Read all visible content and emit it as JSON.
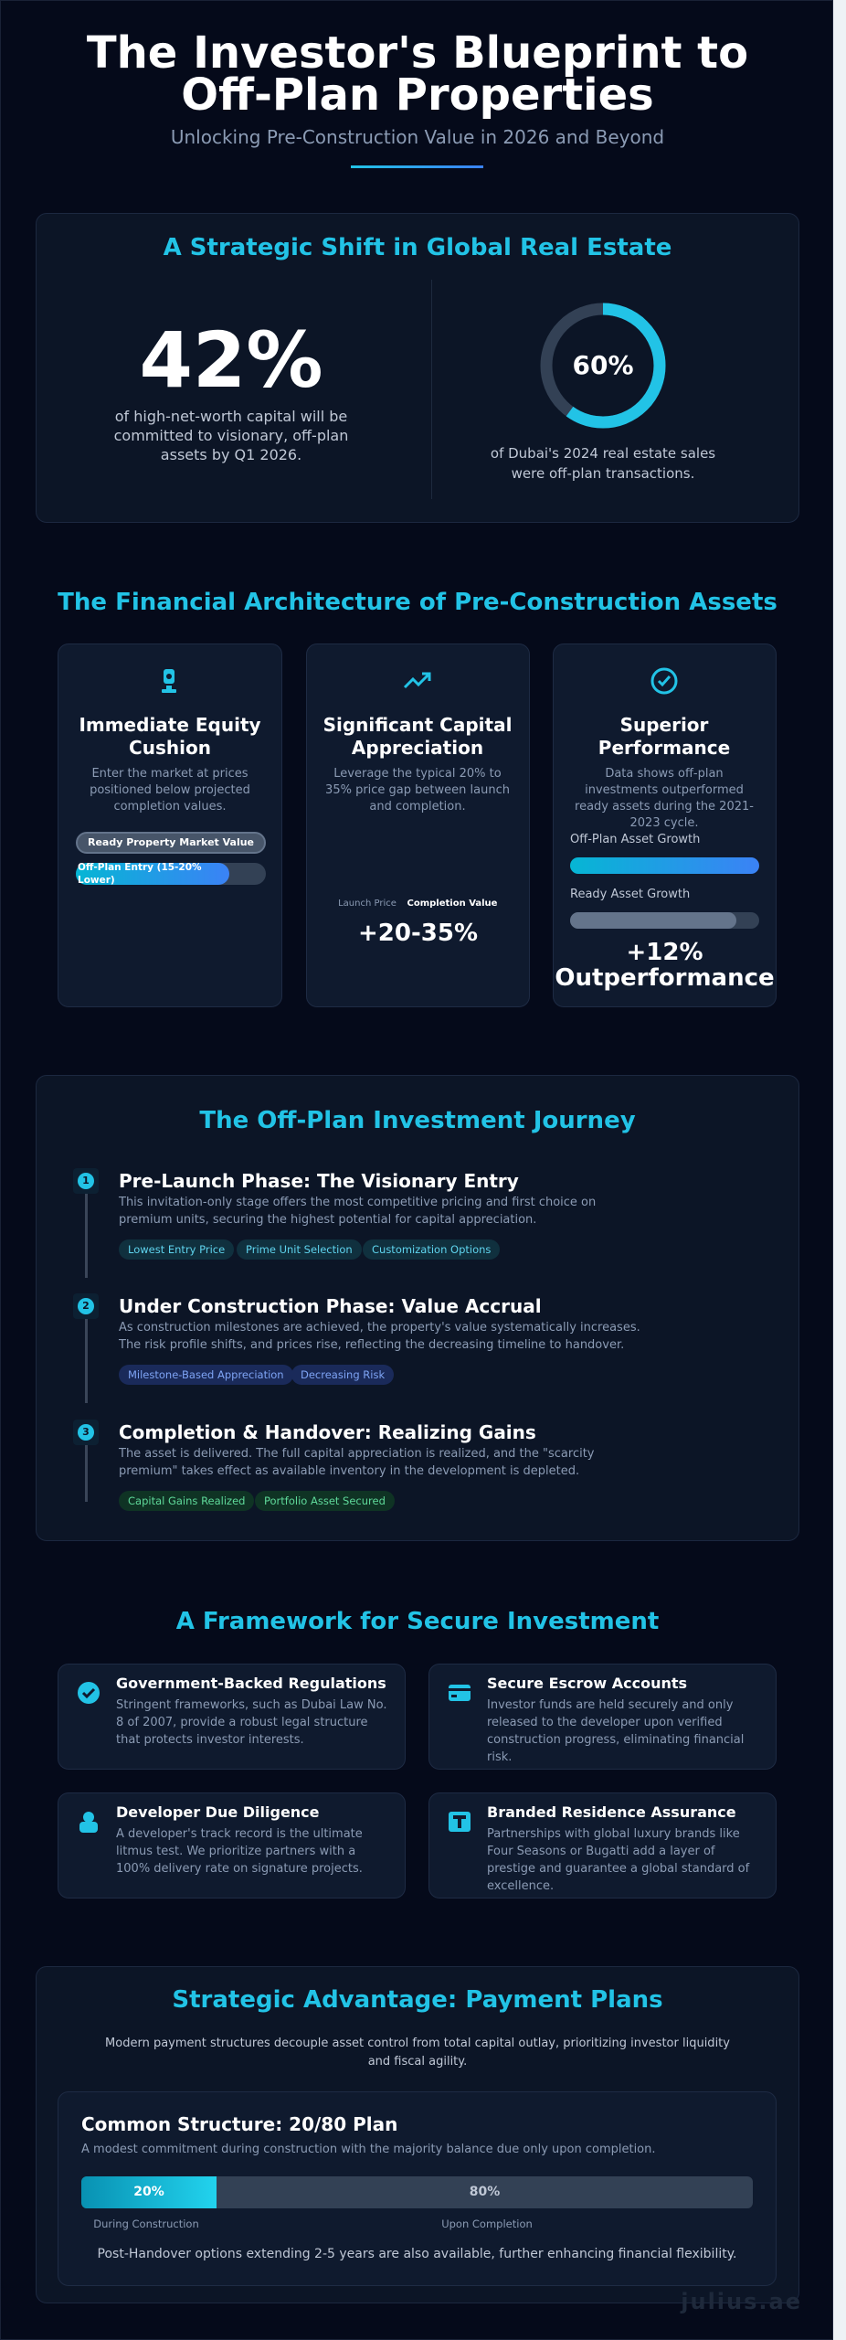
{
  "header": {
    "title": "The Investor's Blueprint to Off-Plan Properties",
    "subtitle": "Unlocking Pre-Construction Value in 2026 and Beyond"
  },
  "shift": {
    "title": "A Strategic Shift in Global Real Estate",
    "stat1": {
      "value": "42%",
      "caption": "of high-net-worth capital will be committed to visionary, off-plan assets by Q1 2026."
    },
    "stat2": {
      "value": "60%",
      "caption": "of Dubai's 2024 real estate sales were off-plan transactions."
    }
  },
  "architecture": {
    "title": "The Financial Architecture of Pre-Construction Assets",
    "cards": [
      {
        "title": "Immediate Equity Cushion",
        "description": "Enter the market at prices positioned below projected completion values.",
        "bars": [
          "Ready Property Market Value",
          "Off-Plan Entry (15-20% Lower)"
        ]
      },
      {
        "title": "Significant Capital Appreciation",
        "description": "Leverage the typical 20% to 35% price gap between launch and completion.",
        "labels": [
          "Launch Price",
          "Completion Value"
        ],
        "highlight": "+20-35%"
      },
      {
        "title": "Superior Performance",
        "description": "Data shows off-plan investments outperformed ready assets during the 2021-2023 cycle.",
        "bars": [
          "Off-Plan Asset Growth",
          "Ready Asset Growth"
        ],
        "highlight": "+12% Outperformance"
      }
    ]
  },
  "journey": {
    "title": "The Off-Plan Investment Journey",
    "steps": [
      {
        "number": "1",
        "title": "Pre-Launch Phase: The Visionary Entry",
        "description": "This invitation-only stage offers the most competitive pricing and first choice on premium units, securing the highest potential for capital appreciation.",
        "tags": [
          "Lowest Entry Price",
          "Prime Unit Selection",
          "Customization Options"
        ]
      },
      {
        "number": "2",
        "title": "Under Construction Phase: Value Accrual",
        "description": "As construction milestones are achieved, the property's value systematically increases. The risk profile shifts, and prices rise, reflecting the decreasing timeline to handover.",
        "tags": [
          "Milestone-Based Appreciation",
          "Decreasing Risk"
        ]
      },
      {
        "number": "3",
        "title": "Completion & Handover: Realizing Gains",
        "description": "The asset is delivered. The full capital appreciation is realized, and the \"scarcity premium\" takes effect as available inventory in the development is depleted.",
        "tags": [
          "Capital Gains Realized",
          "Portfolio Asset Secured"
        ]
      }
    ]
  },
  "framework": {
    "title": "A Framework for Secure Investment",
    "items": [
      {
        "title": "Government-Backed Regulations",
        "description": "Stringent frameworks, such as Dubai Law No. 8 of 2007, provide a robust legal structure that protects investor interests."
      },
      {
        "title": "Secure Escrow Accounts",
        "description": "Investor funds are held securely and only released to the developer upon verified construction progress, eliminating financial risk."
      },
      {
        "title": "Developer Due Diligence",
        "description": "A developer's track record is the ultimate litmus test. We prioritize partners with a 100% delivery rate on signature projects."
      },
      {
        "title": "Branded Residence Assurance",
        "description": "Partnerships with global luxury brands like Four Seasons or Bugatti add a layer of prestige and guarantee a global standard of excellence."
      }
    ]
  },
  "payment": {
    "title": "Strategic Advantage: Payment Plans",
    "description": "Modern payment structures decouple asset control from total capital outlay, prioritizing investor liquidity and fiscal agility.",
    "structure": {
      "title": "Common Structure: 20/80 Plan",
      "description": "A modest commitment during construction with the majority balance due only upon completion.",
      "segments": [
        {
          "label": "20%",
          "caption": "During Construction"
        },
        {
          "label": "80%",
          "caption": "Upon Completion"
        }
      ]
    },
    "note": "Post-Handover options extending 2-5 years are also available, further enhancing financial flexibility."
  },
  "watermark": "julius.ae"
}
